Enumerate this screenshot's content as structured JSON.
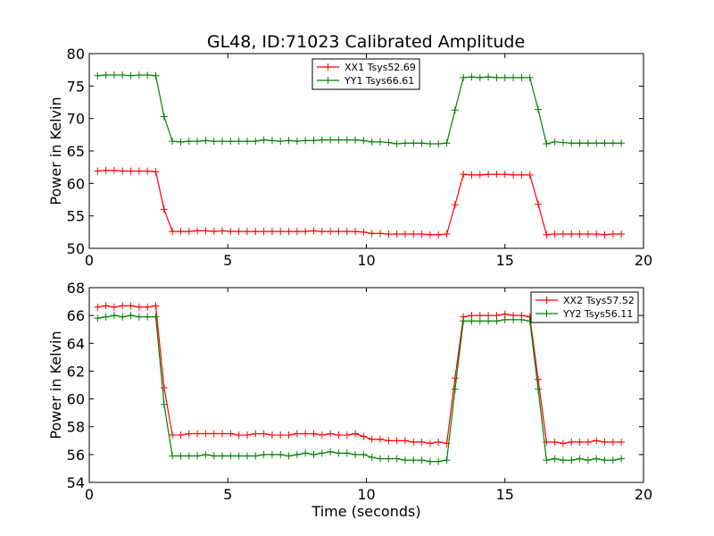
{
  "figure": {
    "title": "GL48, ID:71023 Calibrated Amplitude"
  },
  "chart_data": [
    {
      "type": "line",
      "title": "GL48, ID:71023 Calibrated Amplitude",
      "xlabel": "",
      "ylabel": "Power in Kelvin",
      "xlim": [
        0,
        20
      ],
      "ylim": [
        50,
        80
      ],
      "xticks": [
        0,
        5,
        10,
        15,
        20
      ],
      "yticks": [
        50,
        55,
        60,
        65,
        70,
        75,
        80
      ],
      "grid": false,
      "legend_position": "top-center",
      "series": [
        {
          "name": "XX1 Tsys52.69",
          "color": "#ff0000",
          "x": [
            0.3,
            0.6,
            0.9,
            1.2,
            1.5,
            1.8,
            2.1,
            2.4,
            2.7,
            3.0,
            3.3,
            3.6,
            3.9,
            4.2,
            4.5,
            4.8,
            5.1,
            5.4,
            5.7,
            6.0,
            6.3,
            6.6,
            6.9,
            7.2,
            7.5,
            7.8,
            8.1,
            8.4,
            8.7,
            9.0,
            9.3,
            9.6,
            9.9,
            10.2,
            10.5,
            10.8,
            11.1,
            11.4,
            11.7,
            12.0,
            12.3,
            12.6,
            12.9,
            13.2,
            13.5,
            13.8,
            14.1,
            14.4,
            14.7,
            15.0,
            15.3,
            15.6,
            15.9,
            16.2,
            16.5,
            16.8,
            17.1,
            17.4,
            17.7,
            18.0,
            18.3,
            18.6,
            18.9,
            19.2
          ],
          "y": [
            61.9,
            62.0,
            62.0,
            61.9,
            61.9,
            61.9,
            61.9,
            61.8,
            56.0,
            52.6,
            52.6,
            52.6,
            52.7,
            52.7,
            52.6,
            52.7,
            52.6,
            52.6,
            52.6,
            52.6,
            52.6,
            52.6,
            52.6,
            52.6,
            52.6,
            52.6,
            52.7,
            52.6,
            52.6,
            52.6,
            52.6,
            52.6,
            52.5,
            52.3,
            52.3,
            52.2,
            52.2,
            52.2,
            52.2,
            52.2,
            52.1,
            52.1,
            52.2,
            56.7,
            61.4,
            61.3,
            61.3,
            61.4,
            61.4,
            61.4,
            61.3,
            61.3,
            61.3,
            56.8,
            52.1,
            52.2,
            52.2,
            52.2,
            52.2,
            52.2,
            52.2,
            52.1,
            52.2,
            52.2
          ]
        },
        {
          "name": "YY1 Tsys66.61",
          "color": "#008000",
          "x": [
            0.3,
            0.6,
            0.9,
            1.2,
            1.5,
            1.8,
            2.1,
            2.4,
            2.7,
            3.0,
            3.3,
            3.6,
            3.9,
            4.2,
            4.5,
            4.8,
            5.1,
            5.4,
            5.7,
            6.0,
            6.3,
            6.6,
            6.9,
            7.2,
            7.5,
            7.8,
            8.1,
            8.4,
            8.7,
            9.0,
            9.3,
            9.6,
            9.9,
            10.2,
            10.5,
            10.8,
            11.1,
            11.4,
            11.7,
            12.0,
            12.3,
            12.6,
            12.9,
            13.2,
            13.5,
            13.8,
            14.1,
            14.4,
            14.7,
            15.0,
            15.3,
            15.6,
            15.9,
            16.2,
            16.5,
            16.8,
            17.1,
            17.4,
            17.7,
            18.0,
            18.3,
            18.6,
            18.9,
            19.2
          ],
          "y": [
            76.6,
            76.7,
            76.7,
            76.7,
            76.6,
            76.7,
            76.7,
            76.6,
            70.3,
            66.5,
            66.4,
            66.5,
            66.5,
            66.6,
            66.5,
            66.5,
            66.5,
            66.5,
            66.5,
            66.5,
            66.7,
            66.6,
            66.5,
            66.6,
            66.5,
            66.6,
            66.6,
            66.7,
            66.7,
            66.7,
            66.7,
            66.7,
            66.6,
            66.4,
            66.4,
            66.3,
            66.1,
            66.2,
            66.2,
            66.2,
            66.1,
            66.1,
            66.2,
            71.3,
            76.3,
            76.4,
            76.3,
            76.4,
            76.3,
            76.3,
            76.3,
            76.3,
            76.3,
            71.4,
            66.1,
            66.4,
            66.3,
            66.2,
            66.2,
            66.2,
            66.2,
            66.2,
            66.2,
            66.2
          ]
        }
      ]
    },
    {
      "type": "line",
      "title": "",
      "xlabel": "Time (seconds)",
      "ylabel": "Power in Kelvin",
      "xlim": [
        0,
        20
      ],
      "ylim": [
        54,
        68
      ],
      "xticks": [
        0,
        5,
        10,
        15,
        20
      ],
      "yticks": [
        54,
        56,
        58,
        60,
        62,
        64,
        66,
        68
      ],
      "grid": false,
      "legend_position": "top-right",
      "series": [
        {
          "name": "XX2 Tsys57.52",
          "color": "#ff0000",
          "x": [
            0.3,
            0.6,
            0.9,
            1.2,
            1.5,
            1.8,
            2.1,
            2.4,
            2.7,
            3.0,
            3.3,
            3.6,
            3.9,
            4.2,
            4.5,
            4.8,
            5.1,
            5.4,
            5.7,
            6.0,
            6.3,
            6.6,
            6.9,
            7.2,
            7.5,
            7.8,
            8.1,
            8.4,
            8.7,
            9.0,
            9.3,
            9.6,
            9.9,
            10.2,
            10.5,
            10.8,
            11.1,
            11.4,
            11.7,
            12.0,
            12.3,
            12.6,
            12.9,
            13.2,
            13.5,
            13.8,
            14.1,
            14.4,
            14.7,
            15.0,
            15.3,
            15.6,
            15.9,
            16.2,
            16.5,
            16.8,
            17.1,
            17.4,
            17.7,
            18.0,
            18.3,
            18.6,
            18.9,
            19.2
          ],
          "y": [
            66.6,
            66.7,
            66.6,
            66.7,
            66.7,
            66.6,
            66.6,
            66.7,
            60.8,
            57.4,
            57.4,
            57.5,
            57.5,
            57.5,
            57.5,
            57.5,
            57.5,
            57.4,
            57.4,
            57.5,
            57.5,
            57.4,
            57.4,
            57.4,
            57.5,
            57.5,
            57.5,
            57.4,
            57.5,
            57.4,
            57.4,
            57.5,
            57.3,
            57.1,
            57.1,
            57.0,
            57.0,
            57.0,
            56.9,
            56.9,
            56.8,
            56.9,
            56.8,
            61.5,
            65.9,
            66.0,
            66.0,
            66.0,
            66.0,
            66.1,
            66.0,
            66.0,
            65.9,
            61.4,
            56.9,
            56.9,
            56.8,
            56.9,
            56.9,
            56.9,
            57.0,
            56.9,
            56.9,
            56.9
          ]
        },
        {
          "name": "YY2 Tsys56.11",
          "color": "#008000",
          "x": [
            0.3,
            0.6,
            0.9,
            1.2,
            1.5,
            1.8,
            2.1,
            2.4,
            2.7,
            3.0,
            3.3,
            3.6,
            3.9,
            4.2,
            4.5,
            4.8,
            5.1,
            5.4,
            5.7,
            6.0,
            6.3,
            6.6,
            6.9,
            7.2,
            7.5,
            7.8,
            8.1,
            8.4,
            8.7,
            9.0,
            9.3,
            9.6,
            9.9,
            10.2,
            10.5,
            10.8,
            11.1,
            11.4,
            11.7,
            12.0,
            12.3,
            12.6,
            12.9,
            13.2,
            13.5,
            13.8,
            14.1,
            14.4,
            14.7,
            15.0,
            15.3,
            15.6,
            15.9,
            16.2,
            16.5,
            16.8,
            17.1,
            17.4,
            17.7,
            18.0,
            18.3,
            18.6,
            18.9,
            19.2
          ],
          "y": [
            65.8,
            65.9,
            66.0,
            65.9,
            66.0,
            65.9,
            65.9,
            65.9,
            59.6,
            55.9,
            55.9,
            55.9,
            55.9,
            56.0,
            55.9,
            55.9,
            55.9,
            55.9,
            55.9,
            55.9,
            56.0,
            56.0,
            56.0,
            55.9,
            56.0,
            56.1,
            56.0,
            56.1,
            56.2,
            56.1,
            56.1,
            56.0,
            56.0,
            55.8,
            55.7,
            55.7,
            55.7,
            55.6,
            55.6,
            55.6,
            55.5,
            55.5,
            55.6,
            60.7,
            65.6,
            65.6,
            65.6,
            65.6,
            65.6,
            65.7,
            65.7,
            65.7,
            65.6,
            60.7,
            55.6,
            55.7,
            55.6,
            55.6,
            55.7,
            55.6,
            55.7,
            55.6,
            55.6,
            55.7
          ]
        }
      ]
    }
  ]
}
